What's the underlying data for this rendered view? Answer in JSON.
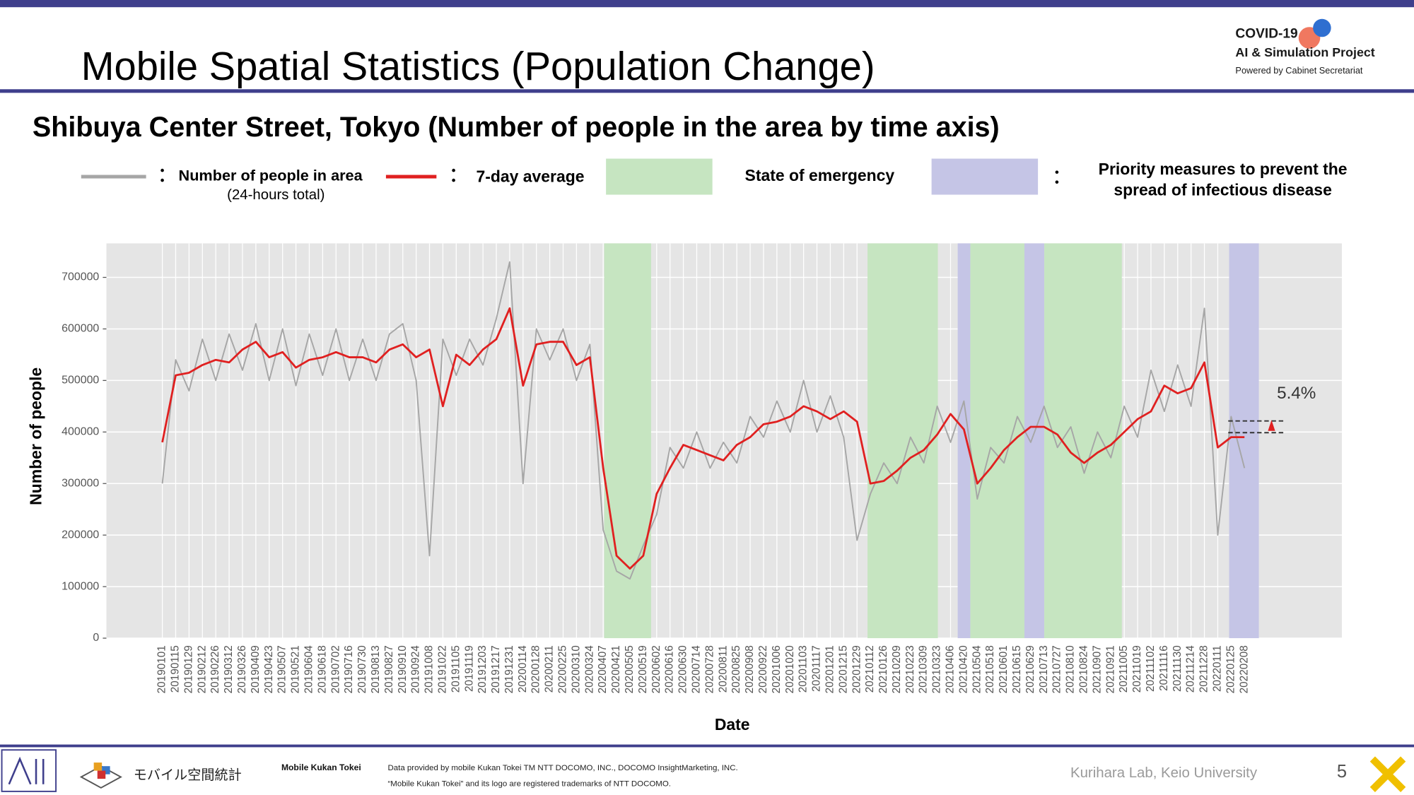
{
  "slide": {
    "title": "Mobile Spatial Statistics (Population Change)",
    "logo": {
      "line1": "COVID-19",
      "line2": "AI & Simulation Project",
      "line3": "Powered by Cabinet Secretariat"
    },
    "footer": {
      "brand_jp": "モバイル空間統計",
      "brand_en": "Mobile Kukan Tokei",
      "credit1": "Data provided by mobile Kukan Tokei TM NTT DOCOMO, INC., DOCOMO InsightMarketing, INC.",
      "credit2": "“Mobile Kukan Tokei” and its logo are registered trademarks of NTT DOCOMO.",
      "lab": "Kurihara Lab, Keio University",
      "page": "5"
    }
  },
  "chart_data": {
    "type": "line",
    "title": "Shibuya Center Street, Tokyo (Number of people in the area by time axis)",
    "x_label": "Date",
    "y_label": "Number of people",
    "annotation": "5.4%",
    "legend_note": "(24-hours total)",
    "bands": [
      {
        "name": "State of emergency",
        "color": "#c6e5c1"
      },
      {
        "name": "Priority measures to prevent the spread of infectious disease",
        "color": "#c5c5e6"
      }
    ],
    "grid": true,
    "ylim": [
      0,
      766000
    ],
    "yticks": [
      0,
      100000,
      200000,
      300000,
      400000,
      500000,
      600000,
      700000
    ],
    "categories": [
      "20190101",
      "20190115",
      "20190129",
      "20190212",
      "20190226",
      "20190312",
      "20190326",
      "20190409",
      "20190423",
      "20190507",
      "20190521",
      "20190604",
      "20190618",
      "20190702",
      "20190716",
      "20190730",
      "20190813",
      "20190827",
      "20190910",
      "20190924",
      "20191008",
      "20191022",
      "20191105",
      "20191119",
      "20191203",
      "20191217",
      "20191231",
      "20200114",
      "20200128",
      "20200211",
      "20200225",
      "20200310",
      "20200324",
      "20200407",
      "20200421",
      "20200505",
      "20200519",
      "20200602",
      "20200616",
      "20200630",
      "20200714",
      "20200728",
      "20200811",
      "20200825",
      "20200908",
      "20200922",
      "20201006",
      "20201020",
      "20201103",
      "20201117",
      "20201201",
      "20201215",
      "20201229",
      "20210112",
      "20210126",
      "20210209",
      "20210223",
      "20210309",
      "20210323",
      "20210406",
      "20210420",
      "20210504",
      "20210518",
      "20210601",
      "20210615",
      "20210629",
      "20210713",
      "20210727",
      "20210810",
      "20210824",
      "20210907",
      "20210921",
      "20211005",
      "20211019",
      "20211102",
      "20211116",
      "20211130",
      "20211214",
      "20211228",
      "20220111",
      "20220125",
      "20220208"
    ],
    "series": [
      {
        "name": "Number of people in area",
        "color": "#a6a6a6",
        "values": [
          300000,
          540000,
          480000,
          580000,
          500000,
          590000,
          520000,
          610000,
          500000,
          600000,
          490000,
          590000,
          510000,
          600000,
          500000,
          580000,
          500000,
          590000,
          610000,
          500000,
          160000,
          580000,
          510000,
          580000,
          530000,
          620000,
          730000,
          300000,
          600000,
          540000,
          600000,
          500000,
          570000,
          210000,
          130000,
          115000,
          180000,
          240000,
          370000,
          330000,
          400000,
          330000,
          380000,
          340000,
          430000,
          390000,
          460000,
          400000,
          500000,
          400000,
          470000,
          390000,
          190000,
          280000,
          340000,
          300000,
          390000,
          340000,
          450000,
          380000,
          460000,
          270000,
          370000,
          340000,
          430000,
          380000,
          450000,
          370000,
          410000,
          320000,
          400000,
          350000,
          450000,
          390000,
          520000,
          440000,
          530000,
          450000,
          640000,
          200000,
          430000,
          330000
        ]
      },
      {
        "name": "7-day average",
        "color": "#e02020",
        "values": [
          380000,
          510000,
          515000,
          530000,
          540000,
          535000,
          560000,
          575000,
          545000,
          555000,
          525000,
          540000,
          545000,
          555000,
          545000,
          545000,
          535000,
          560000,
          570000,
          545000,
          560000,
          450000,
          550000,
          530000,
          560000,
          580000,
          640000,
          490000,
          570000,
          575000,
          575000,
          530000,
          545000,
          330000,
          160000,
          135000,
          160000,
          280000,
          330000,
          375000,
          365000,
          355000,
          345000,
          375000,
          390000,
          415000,
          420000,
          430000,
          450000,
          440000,
          425000,
          440000,
          420000,
          300000,
          305000,
          325000,
          350000,
          365000,
          395000,
          435000,
          405000,
          300000,
          330000,
          365000,
          390000,
          410000,
          410000,
          395000,
          360000,
          340000,
          360000,
          375000,
          400000,
          425000,
          440000,
          490000,
          475000,
          485000,
          535000,
          370000,
          390000,
          390000
        ]
      }
    ]
  }
}
